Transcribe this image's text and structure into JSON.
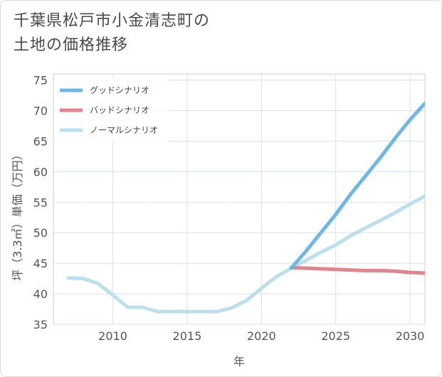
{
  "chart_data": {
    "type": "line",
    "title_lines": [
      "千葉県松戸市小金清志町の",
      "土地の価格推移"
    ],
    "xlabel": "年",
    "ylabel": "坪（3.3㎡）単価（万円）",
    "xlim": [
      2006,
      2031
    ],
    "ylim": [
      35,
      76
    ],
    "x_ticks": [
      2010,
      2015,
      2020,
      2025,
      2030
    ],
    "y_ticks": [
      35,
      40,
      45,
      50,
      55,
      60,
      65,
      70,
      75
    ],
    "grid": true,
    "legend_position": "top-left",
    "series": [
      {
        "name": "グッドシナリオ",
        "color": "#6cb8ea",
        "points": [
          [
            2022,
            44.2
          ],
          [
            2023,
            47.0
          ],
          [
            2024,
            50.0
          ],
          [
            2025,
            53.0
          ],
          [
            2026,
            56.3
          ],
          [
            2027,
            59.3
          ],
          [
            2028,
            62.3
          ],
          [
            2029,
            65.5
          ],
          [
            2030,
            68.5
          ],
          [
            2031,
            71.2
          ]
        ]
      },
      {
        "name": "バッドシナリオ",
        "color": "#e0858e",
        "points": [
          [
            2022,
            44.3
          ],
          [
            2023,
            44.2
          ],
          [
            2024,
            44.1
          ],
          [
            2025,
            44.0
          ],
          [
            2026,
            43.9
          ],
          [
            2027,
            43.8
          ],
          [
            2028,
            43.8
          ],
          [
            2029,
            43.7
          ],
          [
            2030,
            43.5
          ],
          [
            2031,
            43.4
          ]
        ]
      },
      {
        "name": "ノーマルシナリオ",
        "color": "#bcdfee",
        "points": [
          [
            2007,
            42.6
          ],
          [
            2008,
            42.5
          ],
          [
            2009,
            41.7
          ],
          [
            2010,
            39.8
          ],
          [
            2011,
            37.8
          ],
          [
            2012,
            37.8
          ],
          [
            2013,
            37.1
          ],
          [
            2014,
            37.1
          ],
          [
            2015,
            37.1
          ],
          [
            2016,
            37.1
          ],
          [
            2017,
            37.1
          ],
          [
            2018,
            37.7
          ],
          [
            2019,
            38.9
          ],
          [
            2020,
            40.9
          ],
          [
            2021,
            42.8
          ],
          [
            2022,
            44.2
          ],
          [
            2023,
            45.5
          ],
          [
            2024,
            46.8
          ],
          [
            2025,
            48.0
          ],
          [
            2026,
            49.5
          ],
          [
            2027,
            50.8
          ],
          [
            2028,
            52.0
          ],
          [
            2029,
            53.3
          ],
          [
            2030,
            54.7
          ],
          [
            2031,
            56.0
          ]
        ]
      }
    ]
  }
}
